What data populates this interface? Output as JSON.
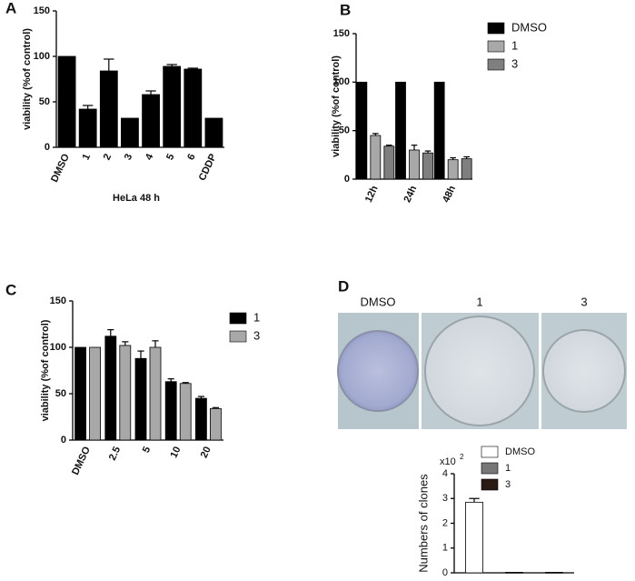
{
  "chart_data": [
    {
      "panel": "A",
      "type": "bar",
      "ylabel": "viability (%of  control)",
      "xlabel": "HeLa 48 h",
      "categories": [
        "DMSO",
        "1",
        "2",
        "3",
        "4",
        "5",
        "6",
        "CDDP"
      ],
      "series": [
        {
          "name": null,
          "color": "#000000",
          "values": [
            100,
            42,
            84,
            32,
            58,
            89,
            86,
            32
          ],
          "errors": [
            0,
            4,
            13,
            0,
            4,
            2,
            1,
            0
          ]
        }
      ],
      "ylim": [
        0,
        150
      ],
      "yticks": [
        0,
        50,
        100,
        150
      ],
      "grid": false
    },
    {
      "panel": "B",
      "type": "bar",
      "ylabel": "viability (%of  control)",
      "categories": [
        "12h",
        "24h",
        "48h"
      ],
      "series": [
        {
          "name": "DMSO",
          "color": "#000000",
          "values": [
            100,
            100,
            100
          ],
          "errors": [
            0,
            0,
            0
          ]
        },
        {
          "name": "1",
          "color": "#a8a8a8",
          "values": [
            45,
            30,
            20
          ],
          "errors": [
            2,
            5,
            2
          ]
        },
        {
          "name": "3",
          "color": "#7f7f7f",
          "values": [
            34,
            27,
            21
          ],
          "errors": [
            1,
            2,
            2
          ]
        }
      ],
      "ylim": [
        0,
        150
      ],
      "yticks": [
        0,
        50,
        100,
        150
      ],
      "grid": false,
      "legend": "top-right"
    },
    {
      "panel": "C",
      "type": "bar",
      "ylabel": "viability (%of  control)",
      "categories": [
        "DMSO",
        "2.5",
        "5",
        "10",
        "20"
      ],
      "series": [
        {
          "name": "1",
          "color": "#000000",
          "values": [
            100,
            112,
            88,
            63,
            45
          ],
          "errors": [
            0,
            7,
            8,
            3,
            2
          ]
        },
        {
          "name": "3",
          "color": "#a8a8a8",
          "values": [
            100,
            102,
            100,
            61,
            34
          ],
          "errors": [
            0,
            4,
            7,
            1,
            1
          ]
        }
      ],
      "ylim": [
        0,
        150
      ],
      "yticks": [
        0,
        50,
        100,
        150
      ],
      "grid": false,
      "legend": "top-right"
    },
    {
      "panel": "D",
      "type": "bar",
      "ylabel": "Numbers of clones",
      "y_multiplier": "x10",
      "y_multiplier_exp": "2",
      "image_labels": [
        "DMSO",
        "1",
        "3"
      ],
      "categories": [
        null,
        null,
        null
      ],
      "series": [
        {
          "name": "DMSO",
          "color": "#ffffff",
          "values": [
            2.85,
            null,
            null
          ],
          "errors": [
            0.15,
            null,
            null
          ]
        },
        {
          "name": "1",
          "color": "#777777",
          "values": [
            null,
            0.02,
            null
          ],
          "errors": [
            null,
            0,
            null
          ]
        },
        {
          "name": "3",
          "color": "#2a1a14",
          "values": [
            null,
            null,
            0.02
          ],
          "errors": [
            null,
            null,
            0
          ]
        }
      ],
      "ylim": [
        0,
        4
      ],
      "yticks": [
        0,
        1,
        2,
        3,
        4
      ],
      "grid": false,
      "legend": "top"
    }
  ]
}
